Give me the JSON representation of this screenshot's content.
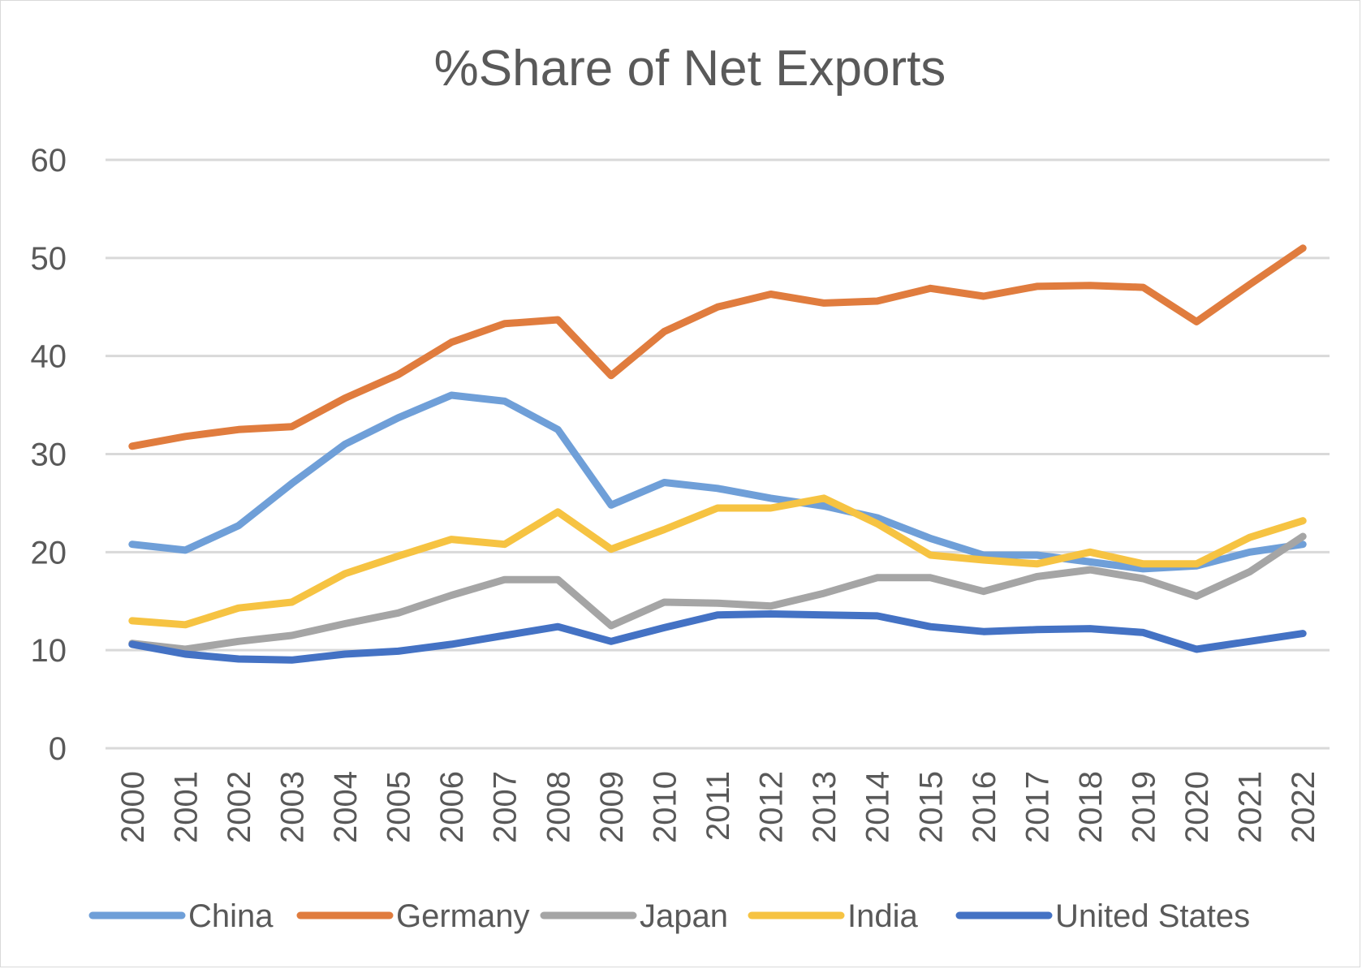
{
  "chart_data": {
    "type": "line",
    "title": "%Share of Net Exports",
    "xlabel": "",
    "ylabel": "",
    "ylim": [
      0,
      60
    ],
    "yticks": [
      0,
      10,
      20,
      30,
      40,
      50,
      60
    ],
    "grid": true,
    "legend": "bottom",
    "categories": [
      "2000",
      "2001",
      "2002",
      "2003",
      "2004",
      "2005",
      "2006",
      "2007",
      "2008",
      "2009",
      "2010",
      "2011",
      "2012",
      "2013",
      "2014",
      "2015",
      "2016",
      "2017",
      "2018",
      "2019",
      "2020",
      "2021",
      "2022"
    ],
    "series": [
      {
        "name": "China",
        "color": "#6f9fd8",
        "values": [
          20.8,
          20.2,
          22.7,
          27.0,
          31.0,
          33.7,
          36.0,
          35.4,
          32.5,
          24.8,
          27.1,
          26.5,
          25.5,
          24.7,
          23.5,
          21.4,
          19.7,
          19.7,
          19.0,
          18.3,
          18.6,
          20.0,
          20.8
        ]
      },
      {
        "name": "Germany",
        "color": "#e07c3e",
        "values": [
          30.8,
          31.8,
          32.5,
          32.8,
          35.7,
          38.1,
          41.4,
          43.3,
          43.7,
          38.0,
          42.5,
          45.0,
          46.3,
          45.4,
          45.6,
          46.9,
          46.1,
          47.1,
          47.2,
          47.0,
          43.5,
          47.3,
          51.0
        ]
      },
      {
        "name": "Japan",
        "color": "#a5a5a5",
        "values": [
          10.7,
          10.1,
          10.9,
          11.5,
          12.7,
          13.8,
          15.6,
          17.2,
          17.2,
          12.5,
          14.9,
          14.8,
          14.5,
          15.8,
          17.4,
          17.4,
          16.0,
          17.5,
          18.2,
          17.3,
          15.5,
          18.0,
          21.6
        ]
      },
      {
        "name": "India",
        "color": "#f6c342",
        "values": [
          13.0,
          12.6,
          14.3,
          14.9,
          17.8,
          19.6,
          21.3,
          20.8,
          24.1,
          20.3,
          22.3,
          24.5,
          24.5,
          25.5,
          22.9,
          19.7,
          19.2,
          18.8,
          20.0,
          18.8,
          18.8,
          21.5,
          23.2
        ]
      },
      {
        "name": "United States",
        "color": "#4472c4",
        "values": [
          10.6,
          9.6,
          9.1,
          9.0,
          9.6,
          9.9,
          10.6,
          11.5,
          12.4,
          10.9,
          12.3,
          13.6,
          13.7,
          13.6,
          13.5,
          12.4,
          11.9,
          12.1,
          12.2,
          11.8,
          10.1,
          10.9,
          11.7
        ]
      }
    ]
  }
}
